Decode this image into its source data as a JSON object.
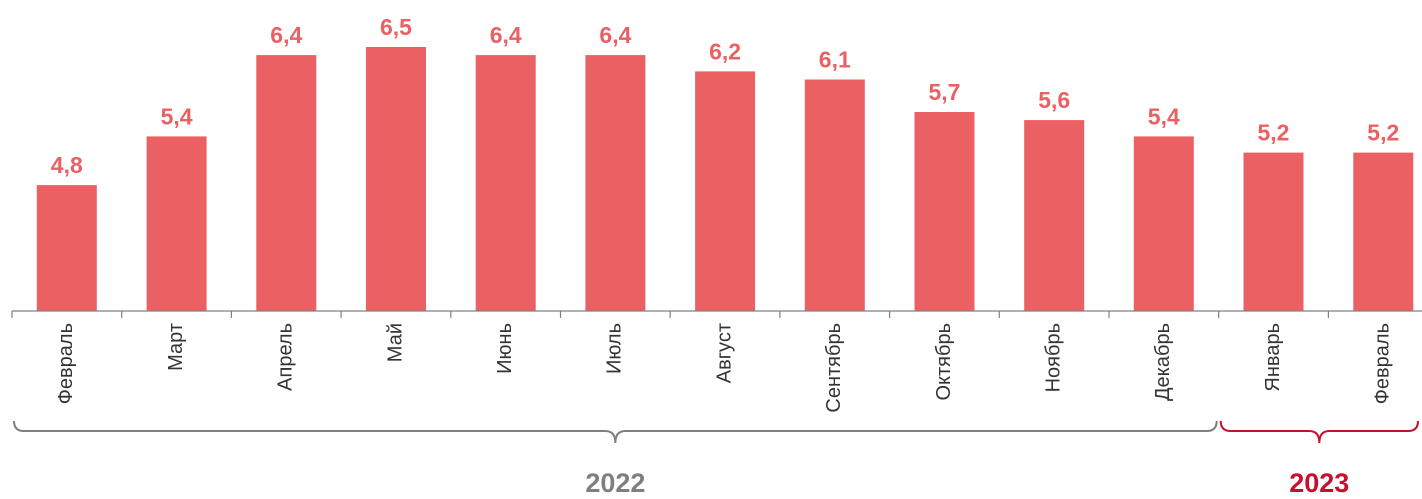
{
  "chart_data": {
    "type": "bar",
    "categories": [
      "Февраль",
      "Март",
      "Апрель",
      "Май",
      "Июнь",
      "Июль",
      "Август",
      "Сентябрь",
      "Октябрь",
      "Ноябрь",
      "Декабрь",
      "Январь",
      "Февраль"
    ],
    "values": [
      4.8,
      5.4,
      6.4,
      6.5,
      6.4,
      6.4,
      6.2,
      6.1,
      5.7,
      5.6,
      5.4,
      5.2,
      5.2
    ],
    "value_labels": [
      "4,8",
      "5,4",
      "6,4",
      "6,5",
      "6,4",
      "6,4",
      "6,2",
      "6,1",
      "5,7",
      "5,6",
      "5,4",
      "5,2",
      "5,2"
    ],
    "ylim": [
      3.25,
      6.5
    ],
    "grid": false,
    "groups": [
      {
        "label": "2022",
        "from": 0,
        "to": 10
      },
      {
        "label": "2023",
        "from": 11,
        "to": 12
      }
    ],
    "colors": {
      "bar": "#EB6063",
      "value_label": "#EB6063",
      "group_2022": "#7F7F7F",
      "group_2023": "#C8102E",
      "axis": "#808080"
    }
  }
}
